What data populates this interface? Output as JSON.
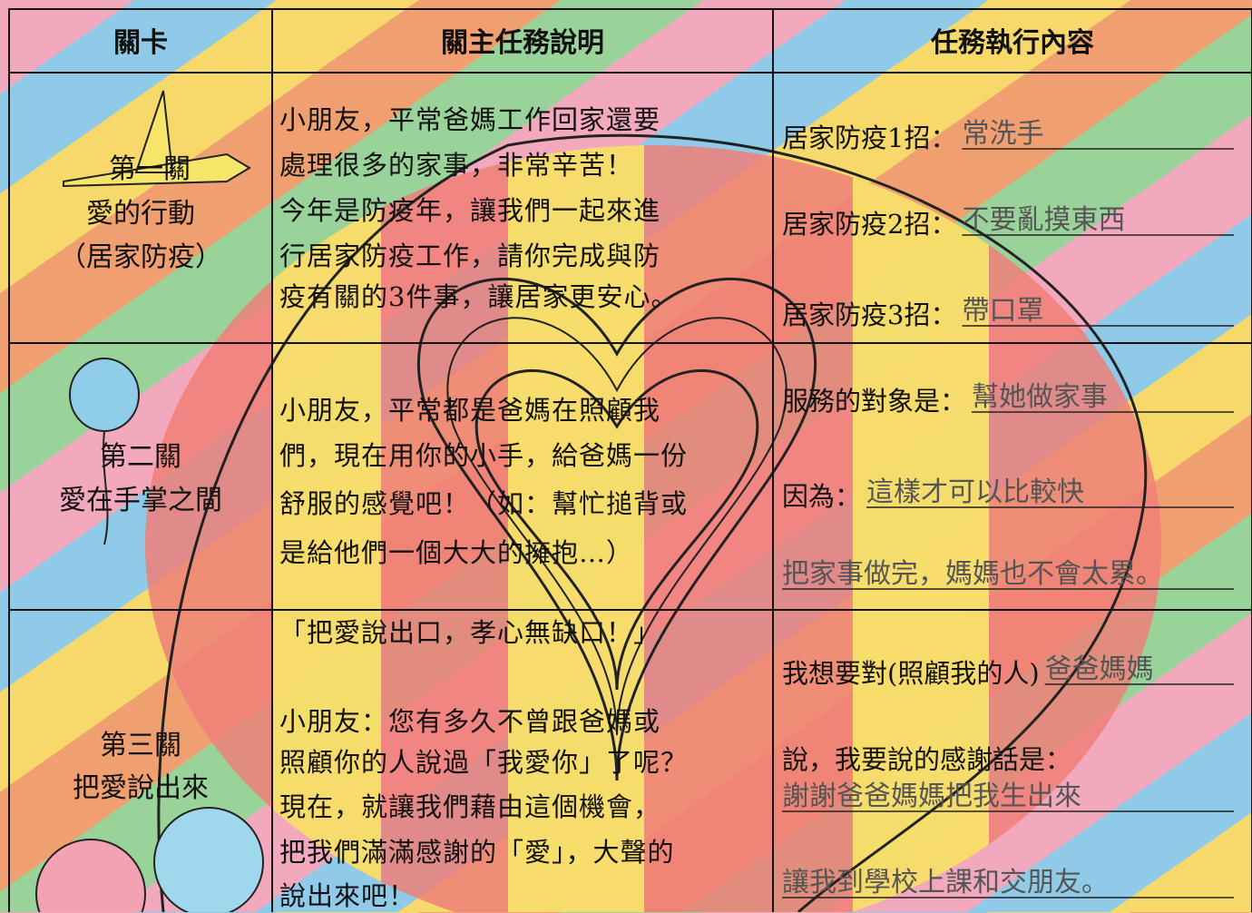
{
  "header": {
    "columns": [
      "關卡",
      "關主任務說明",
      "任務執行內容"
    ]
  },
  "rows": [
    {
      "stage": [
        "第一關",
        "愛的行動",
        "（居家防疫）"
      ],
      "description": [
        "小朋友，平常爸媽工作回家還要",
        "處理很多的家事，非常辛苦！",
        "今年是防疫年，讓我們一起來進",
        "行居家防疫工作，請你完成與防",
        "疫有關的3件事，讓居家更安心。"
      ],
      "tasks": [
        {
          "label": "居家防疫1招：",
          "answer": "常洗手"
        },
        {
          "label": "居家防疫2招：",
          "answer": "不要亂摸東西"
        },
        {
          "label": "居家防疫3招：",
          "answer": "帶口罩"
        }
      ]
    },
    {
      "stage": [
        "第二關",
        "愛在手掌之間"
      ],
      "description": [
        "小朋友，平常都是爸媽在照顧我",
        "們，現在用你的小手，給爸媽一份",
        "舒服的感覺吧！（如：幫忙搥背或",
        "是給他們一個大大的擁抱…）"
      ],
      "tasks": [
        {
          "label": "服務的對象是：",
          "answer": "幫她做家事"
        },
        {
          "label": "因為：",
          "answer": "這樣才可以比較快"
        },
        {
          "label": "",
          "answer": "把家事做完，媽媽也不會太累。"
        }
      ]
    },
    {
      "stage": [
        "第三關",
        "把愛說出來"
      ],
      "description": [
        "「把愛說出口，孝心無缺口！」",
        "小朋友：您有多久不曾跟爸媽或",
        "照顧你的人說過「我愛你」了呢？",
        "現在，就讓我們藉由這個機會，",
        "把我們滿滿感謝的「愛」，大聲的",
        "說出來吧！"
      ],
      "tasks": [
        {
          "label": "我想要對(照顧我的人)",
          "answer": "爸爸媽媽"
        },
        {
          "label": "說，我要說的感謝話是：",
          "answer": ""
        },
        {
          "label": "",
          "answer": "謝謝爸爸媽媽把我生出來"
        },
        {
          "label": "",
          "answer": "讓我到學校上課和交朋友。"
        }
      ]
    }
  ]
}
